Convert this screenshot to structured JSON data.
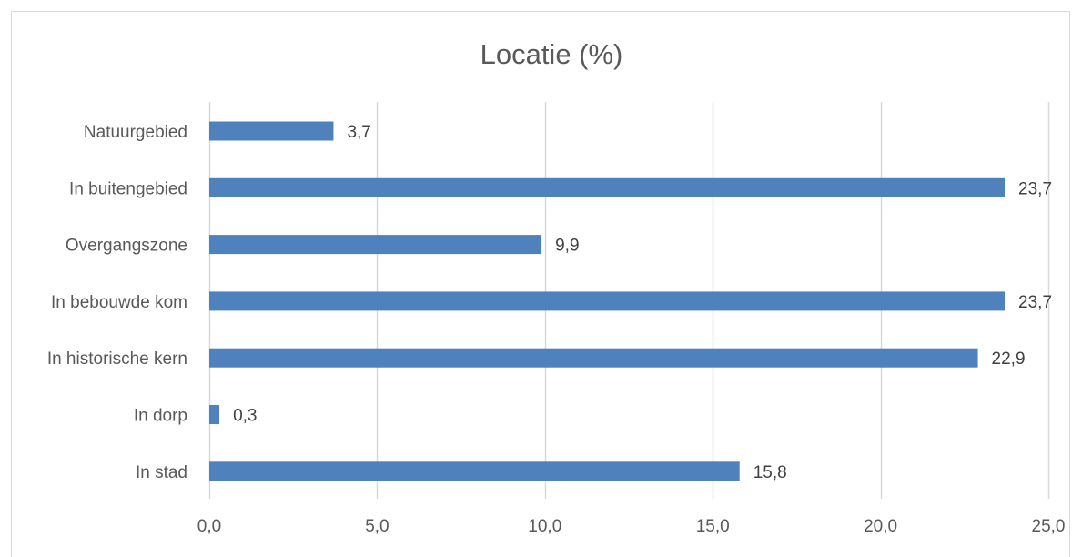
{
  "chart_data": {
    "type": "bar",
    "orientation": "horizontal",
    "title": "Locatie (%)",
    "categories": [
      "Natuurgebied",
      "In buitengebied",
      "Overgangszone",
      "In bebouwde kom",
      "In historische kern",
      "In dorp",
      "In stad"
    ],
    "values": [
      3.7,
      23.7,
      9.9,
      23.7,
      22.9,
      0.3,
      15.8
    ],
    "data_labels": [
      "3,7",
      "23,7",
      "9,9",
      "23,7",
      "22,9",
      "0,3",
      "15,8"
    ],
    "xlim": [
      0,
      25
    ],
    "xticks": [
      0,
      5,
      10,
      15,
      20,
      25
    ],
    "xtick_labels": [
      "0,0",
      "5,0",
      "10,0",
      "15,0",
      "20,0",
      "25,0"
    ],
    "grid": "vertical",
    "legend": "none",
    "bar_color": "#4f81bd",
    "grid_color": "#d9d9d9"
  }
}
